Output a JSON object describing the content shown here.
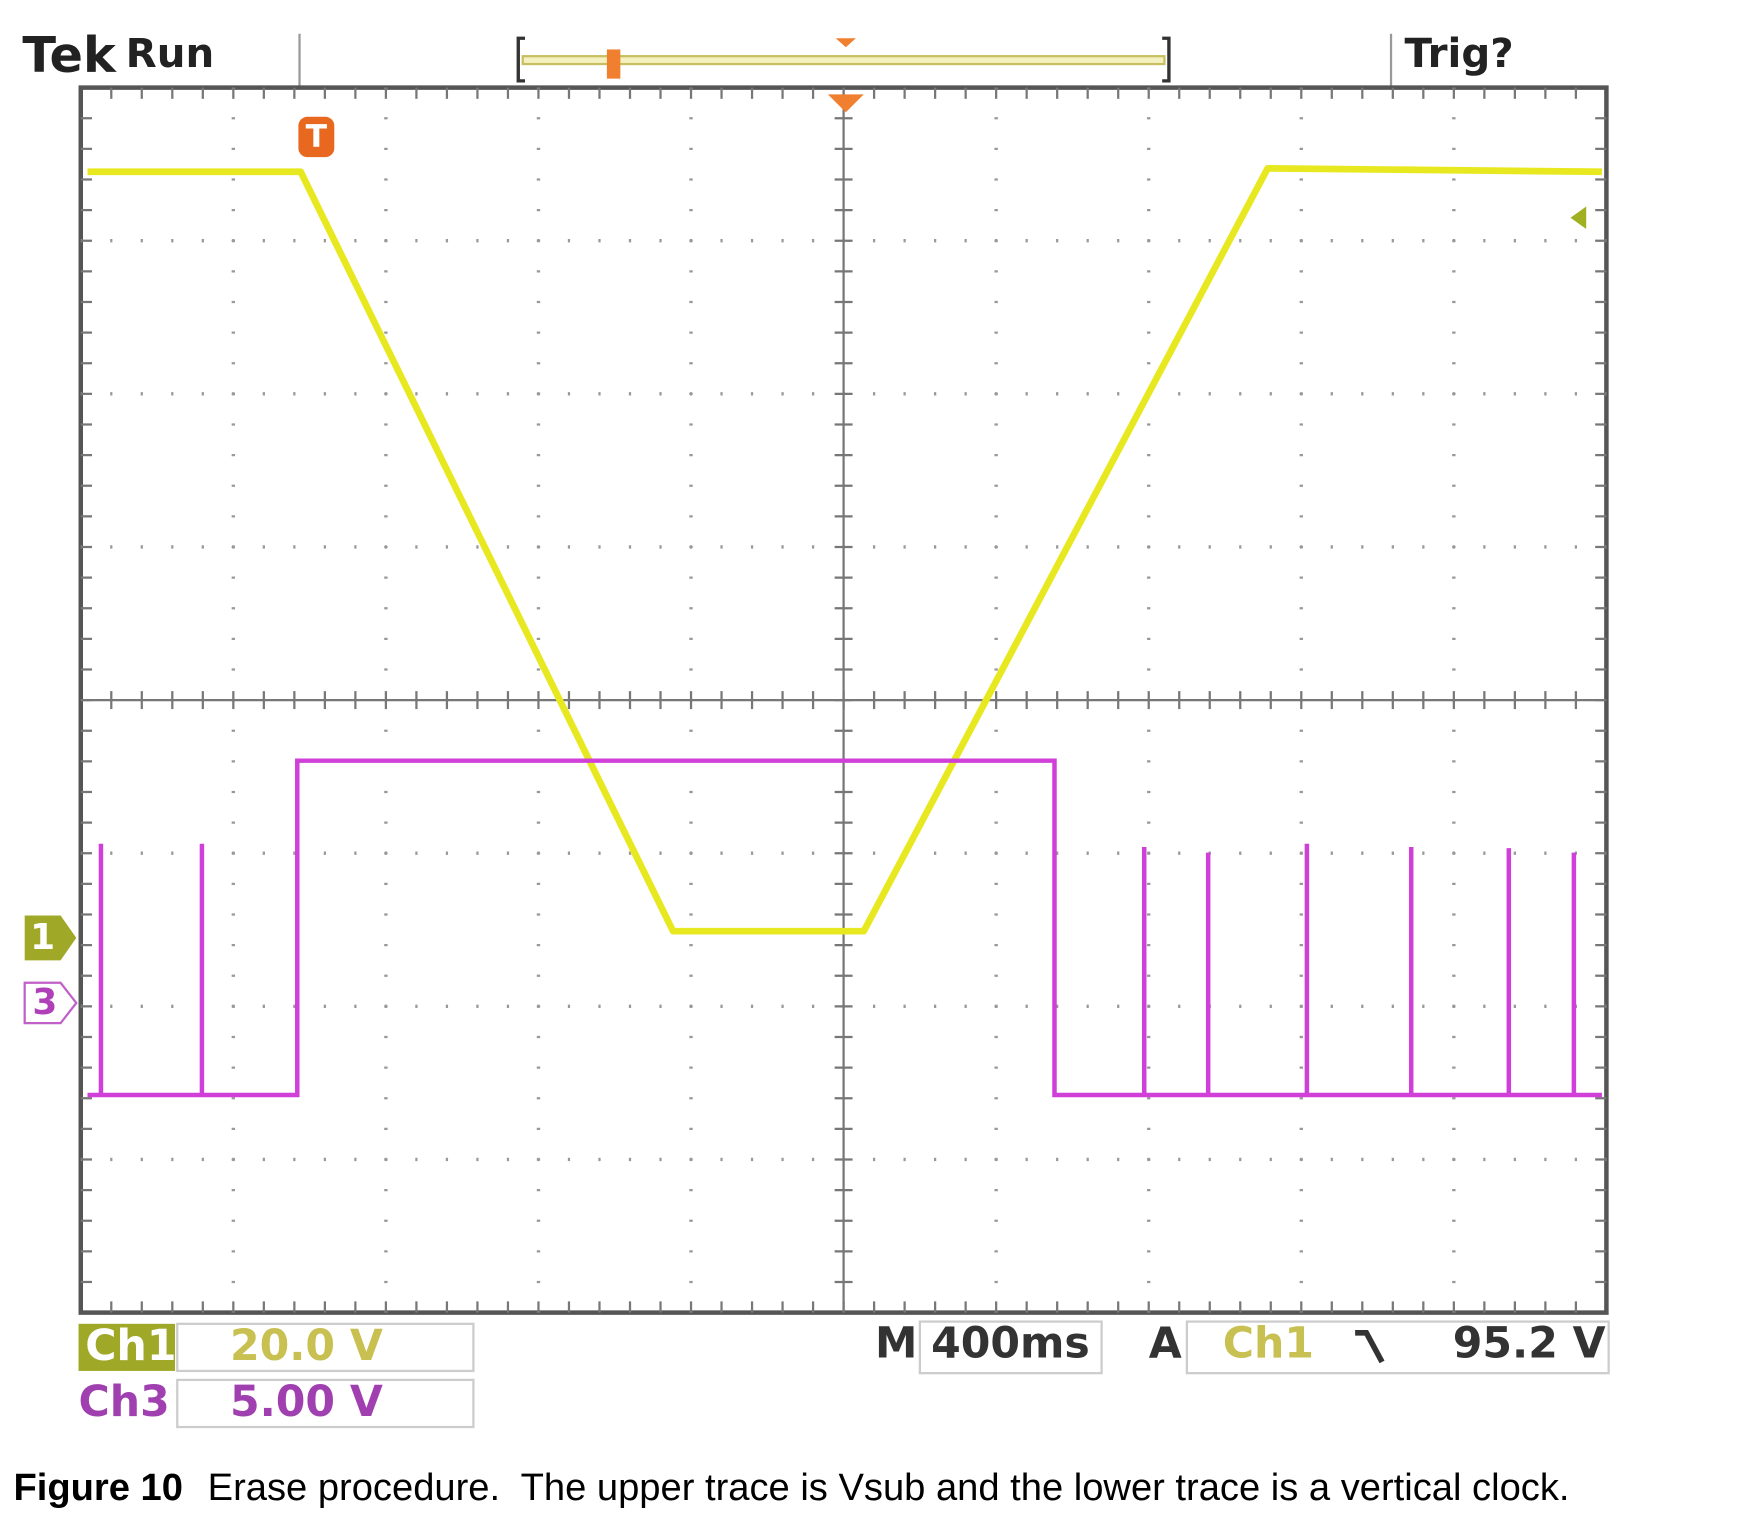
{
  "header": {
    "brand": "Tek",
    "status": "Run",
    "trigger_status": "Trig?"
  },
  "markers": {
    "trigger": "T",
    "ch1": "1",
    "ch3": "3"
  },
  "readout": {
    "ch1": {
      "label": "Ch1",
      "scale": "20.0 V"
    },
    "ch3": {
      "label": "Ch3",
      "scale": "5.00 V"
    },
    "timebase": {
      "label": "M",
      "value": "400ms"
    },
    "trigger": {
      "label": "A",
      "source": "Ch1",
      "level": "95.2 V"
    }
  },
  "caption": {
    "label": "Figure 10",
    "text": "Erase procedure.  The upper trace is Vsub and the lower trace is a vertical clock."
  }
}
